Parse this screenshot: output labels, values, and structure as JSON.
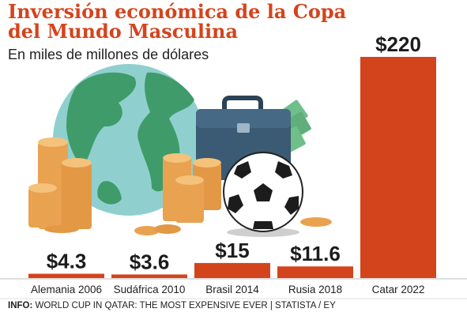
{
  "chart_data": {
    "type": "bar",
    "title": "Inversión económica de la Copa del Mundo Masculina",
    "subtitle": "En miles de millones de dólares",
    "categories": [
      "Alemania 2006",
      "Sudáfrica 2010",
      "Brasil 2014",
      "Rusia 2018",
      "Catar 2022"
    ],
    "values": [
      4.3,
      3.6,
      15,
      11.6,
      220
    ],
    "value_labels": [
      "$4.3",
      "$3.6",
      "$15",
      "$11.6",
      "$220"
    ],
    "bar_color": "#d4441c",
    "ylim": [
      0,
      220
    ],
    "grid": false,
    "legend": "none"
  },
  "source": {
    "label": "INFO:",
    "text": "WORLD CUP IN QATAR: THE MOST EXPENSIVE EVER | STATISTA / EY"
  },
  "colors": {
    "title": "#d4441c",
    "globe_ocean": "#8fd0cf",
    "globe_land": "#3f9c6a",
    "coin": "#e9a24f",
    "briefcase": "#3b5a73",
    "money": "#6fbf8a"
  },
  "illustration": {
    "icons": [
      "globe-icon",
      "briefcase-icon",
      "money-icon",
      "coin-stack-icon",
      "soccer-ball-icon"
    ]
  }
}
